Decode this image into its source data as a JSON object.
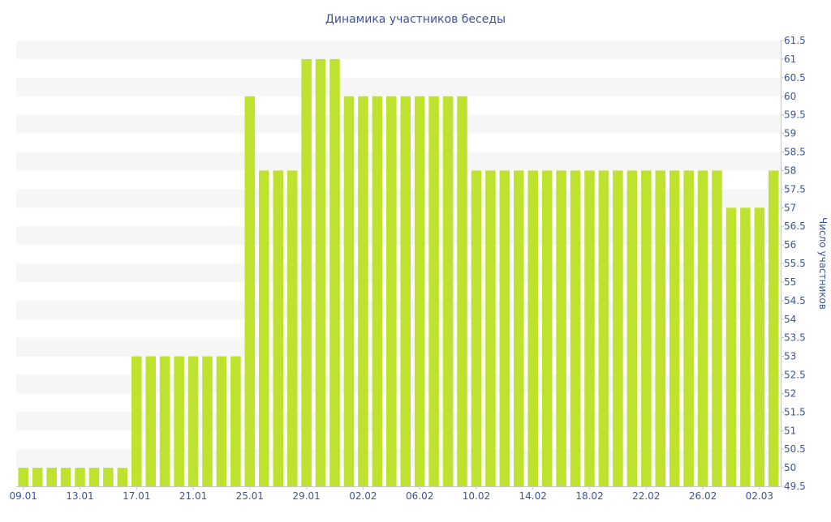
{
  "chart_data": {
    "type": "bar",
    "title": "Динамика участников беседы",
    "xlabel": "",
    "ylabel": "Число участников",
    "y_axis_side": "right",
    "ylim": [
      49.5,
      61.5
    ],
    "y_ticks": [
      "49.5",
      "50",
      "50.5",
      "51",
      "51.5",
      "52",
      "52.5",
      "53",
      "53.5",
      "54",
      "54.5",
      "55",
      "55.5",
      "56",
      "56.5",
      "57",
      "57.5",
      "58",
      "58.5",
      "59",
      "59.5",
      "60",
      "60.5",
      "61",
      "61.5"
    ],
    "grid": "alternating horizontal bands",
    "legend": "none",
    "x_ticks": [
      {
        "index": 0,
        "label": "09.01"
      },
      {
        "index": 4,
        "label": "13.01"
      },
      {
        "index": 8,
        "label": "17.01"
      },
      {
        "index": 12,
        "label": "21.01"
      },
      {
        "index": 16,
        "label": "25.01"
      },
      {
        "index": 20,
        "label": "29.01"
      },
      {
        "index": 24,
        "label": "02.02"
      },
      {
        "index": 28,
        "label": "06.02"
      },
      {
        "index": 32,
        "label": "10.02"
      },
      {
        "index": 36,
        "label": "14.02"
      },
      {
        "index": 40,
        "label": "18.02"
      },
      {
        "index": 44,
        "label": "22.02"
      },
      {
        "index": 48,
        "label": "26.02"
      },
      {
        "index": 52,
        "label": "02.03"
      }
    ],
    "categories": [
      "09.01",
      "10.01",
      "11.01",
      "12.01",
      "13.01",
      "14.01",
      "15.01",
      "16.01",
      "17.01",
      "18.01",
      "19.01",
      "20.01",
      "21.01",
      "22.01",
      "23.01",
      "24.01",
      "25.01",
      "26.01",
      "27.01",
      "28.01",
      "29.01",
      "30.01",
      "31.01",
      "01.02",
      "02.02",
      "03.02",
      "04.02",
      "05.02",
      "06.02",
      "07.02",
      "08.02",
      "09.02",
      "10.02",
      "11.02",
      "12.02",
      "13.02",
      "14.02",
      "15.02",
      "16.02",
      "17.02",
      "18.02",
      "19.02",
      "20.02",
      "21.02",
      "22.02",
      "23.02",
      "24.02",
      "25.02",
      "26.02",
      "27.02",
      "28.02",
      "01.03",
      "02.03",
      "03.03"
    ],
    "values": [
      50,
      50,
      50,
      50,
      50,
      50,
      50,
      50,
      53,
      53,
      53,
      53,
      53,
      53,
      53,
      53,
      60,
      58,
      58,
      58,
      61,
      61,
      61,
      60,
      60,
      60,
      60,
      60,
      60,
      60,
      60,
      60,
      58,
      58,
      58,
      58,
      58,
      58,
      58,
      58,
      58,
      58,
      58,
      58,
      58,
      58,
      58,
      58,
      58,
      58,
      57,
      57,
      57,
      58
    ],
    "colors": {
      "bar": "#bfe22e",
      "band": "#f6f6f6",
      "text": "#3d5499"
    }
  }
}
